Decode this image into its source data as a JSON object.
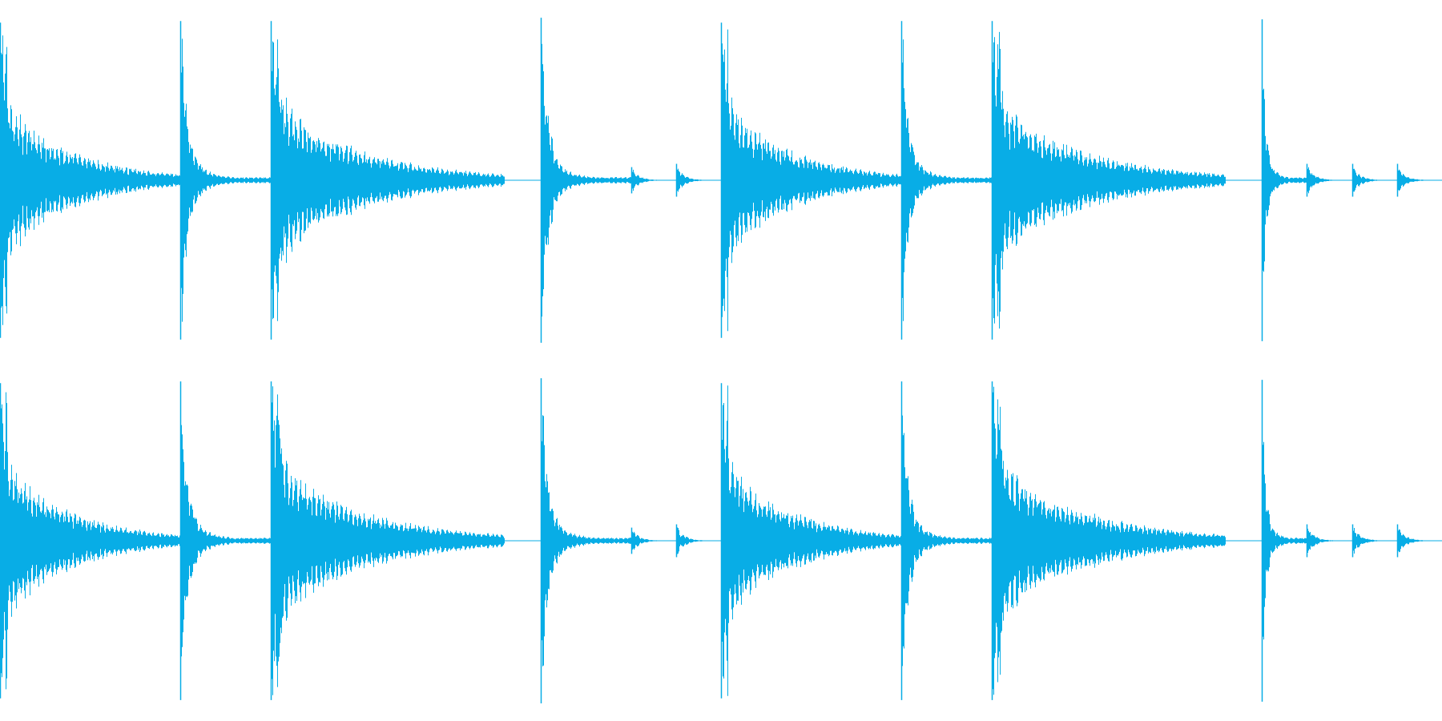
{
  "waveform": {
    "color": "#08ADE6",
    "background": "#FFFFFF",
    "channels": [
      {
        "name": "left",
        "hits": [
          {
            "start": 0.0,
            "amp": 0.96,
            "decay": 0.6,
            "dur": 0.125,
            "type": "long"
          },
          {
            "start": 0.125,
            "amp": 0.97,
            "decay": 0.24,
            "dur": 0.063,
            "type": "short"
          },
          {
            "start": 0.188,
            "amp": 0.97,
            "decay": 0.6,
            "dur": 0.162,
            "type": "long"
          },
          {
            "start": 0.375,
            "amp": 0.99,
            "decay": 0.3,
            "dur": 0.063,
            "type": "short"
          },
          {
            "start": 0.438,
            "amp": 0.08,
            "decay": 0.6,
            "dur": 0.031,
            "type": "tick"
          },
          {
            "start": 0.469,
            "amp": 0.1,
            "decay": 0.6,
            "dur": 0.031,
            "type": "tick"
          },
          {
            "start": 0.5,
            "amp": 0.96,
            "decay": 0.6,
            "dur": 0.125,
            "type": "long"
          },
          {
            "start": 0.625,
            "amp": 0.97,
            "decay": 0.24,
            "dur": 0.063,
            "type": "short"
          },
          {
            "start": 0.688,
            "amp": 0.97,
            "decay": 0.6,
            "dur": 0.162,
            "type": "long"
          },
          {
            "start": 0.875,
            "amp": 0.98,
            "decay": 0.24,
            "dur": 0.031,
            "type": "short"
          },
          {
            "start": 0.906,
            "amp": 0.1,
            "decay": 0.6,
            "dur": 0.031,
            "type": "tick"
          },
          {
            "start": 0.938,
            "amp": 0.1,
            "decay": 0.6,
            "dur": 0.031,
            "type": "tick"
          },
          {
            "start": 0.969,
            "amp": 0.1,
            "decay": 0.6,
            "dur": 0.031,
            "type": "tick"
          }
        ]
      },
      {
        "name": "right",
        "hits": [
          {
            "start": 0.0,
            "amp": 0.96,
            "decay": 0.6,
            "dur": 0.125,
            "type": "long"
          },
          {
            "start": 0.125,
            "amp": 0.97,
            "decay": 0.24,
            "dur": 0.063,
            "type": "short"
          },
          {
            "start": 0.188,
            "amp": 0.97,
            "decay": 0.6,
            "dur": 0.162,
            "type": "long"
          },
          {
            "start": 0.375,
            "amp": 0.99,
            "decay": 0.3,
            "dur": 0.063,
            "type": "short"
          },
          {
            "start": 0.438,
            "amp": 0.08,
            "decay": 0.6,
            "dur": 0.031,
            "type": "tick"
          },
          {
            "start": 0.469,
            "amp": 0.1,
            "decay": 0.6,
            "dur": 0.031,
            "type": "tick"
          },
          {
            "start": 0.5,
            "amp": 0.96,
            "decay": 0.6,
            "dur": 0.125,
            "type": "long"
          },
          {
            "start": 0.625,
            "amp": 0.97,
            "decay": 0.24,
            "dur": 0.063,
            "type": "short"
          },
          {
            "start": 0.688,
            "amp": 0.97,
            "decay": 0.6,
            "dur": 0.162,
            "type": "long"
          },
          {
            "start": 0.875,
            "amp": 0.98,
            "decay": 0.24,
            "dur": 0.031,
            "type": "short"
          },
          {
            "start": 0.906,
            "amp": 0.1,
            "decay": 0.6,
            "dur": 0.031,
            "type": "tick"
          },
          {
            "start": 0.938,
            "amp": 0.1,
            "decay": 0.6,
            "dur": 0.031,
            "type": "tick"
          },
          {
            "start": 0.969,
            "amp": 0.1,
            "decay": 0.6,
            "dur": 0.031,
            "type": "tick"
          }
        ]
      }
    ]
  }
}
